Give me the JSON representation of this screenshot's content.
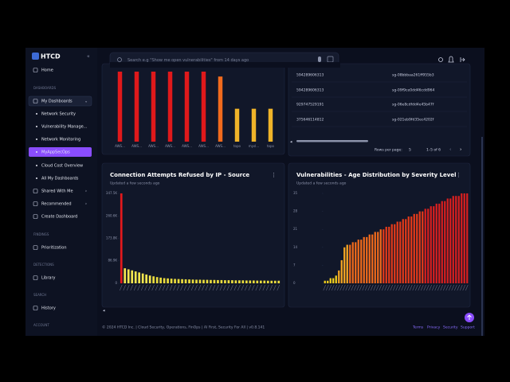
{
  "logo": "HTCD",
  "nav": [
    "Home",
    "DASHBOARDS",
    "My Dashboards",
    "Network Security",
    "Vulnerability Manage...",
    "Network Monitoring",
    "MyAppSecOps",
    "Cloud Cost Overview",
    "All My Dashboards",
    "Shared With Me",
    "Recommended",
    "Create Dashboard",
    "FINDINGS",
    "Prioritization",
    "DETECTIONS",
    "Library",
    "SEARCH",
    "History",
    "ACCOUNT"
  ],
  "search_placeholder": "Search e.g \"Show me open vulnerabilities\" from 14 days ago",
  "table": {
    "rows": [
      [
        "594289606313",
        "sg-08bbbaa261ff955b3"
      ],
      [
        "594289606313",
        "sg-09f9ce0dd46cdd964"
      ],
      [
        "929747529191",
        "sg-06e8cdfdd4e45b47f"
      ],
      [
        "375646114812",
        "sg-021eb9fd35ec4202f"
      ]
    ],
    "rows_per_page_label": "Rows per page:",
    "rows_per_page": 5,
    "range": "1–5 of 6"
  },
  "footer": {
    "copyright": "© 2024 HTCD Inc. | Cloud Security, Operations, FinOps | AI First, Security For All | v0.8.141",
    "links": [
      "Terms",
      "Privacy",
      "Security",
      "Support"
    ]
  },
  "chart_data": [
    {
      "type": "bar",
      "categories": [
        "AWS...",
        "AWS...",
        "AWS...",
        "AWS...",
        "AWS...",
        "AWS...",
        "AWS...",
        "topo",
        "mysl...",
        "topo"
      ],
      "values": [
        100,
        100,
        100,
        100,
        100,
        100,
        93,
        47,
        47,
        47
      ],
      "colors": [
        "#e0191b",
        "#e0191b",
        "#e0191b",
        "#e0191b",
        "#e0191b",
        "#e0191b",
        "#f26b1d",
        "#f0b429",
        "#f0b429",
        "#f0b429"
      ]
    },
    {
      "type": "bar",
      "title": "Connection Attempts Refused by IP - Source",
      "subtitle": "Updated a few seconds ago",
      "values": [
        347500,
        58000,
        54000,
        50000,
        46000,
        42000,
        38000,
        34000,
        30000,
        27000,
        24000,
        22000,
        20000,
        19000,
        18000,
        17000,
        16500,
        16000,
        15500,
        15000,
        14500,
        14000,
        14000,
        13500,
        13500,
        13000,
        13000,
        12500,
        12500,
        12000,
        12000,
        12000,
        11500,
        11500,
        11500,
        11000,
        11000,
        11000,
        10500,
        10500,
        10500,
        10000,
        10000,
        10000,
        10000
      ],
      "colors": [
        "#e3191c",
        "#f3e64f",
        "#f3e64f",
        "#f3e64f",
        "#f3e64f",
        "#f3e64f",
        "#f3e64f",
        "#f3e64f",
        "#f3e64f",
        "#eadc3e",
        "#eadc3e",
        "#eadc3e",
        "#eadc3e",
        "#eadc3e",
        "#eadc3e",
        "#eadc3e",
        "#eadc3e",
        "#eadc3e",
        "#eadc3e",
        "#eadc3e",
        "#eadc3e",
        "#eadc3e",
        "#eadc3e",
        "#eadc3e",
        "#eadc3e",
        "#eadc3e",
        "#eadc3e",
        "#eadc3e",
        "#eadc3e",
        "#eadc3e",
        "#eadc3e",
        "#eadc3e",
        "#eadc3e",
        "#eadc3e",
        "#eadc3e",
        "#eadc3e",
        "#eadc3e",
        "#eadc3e",
        "#eadc3e",
        "#eadc3e",
        "#eadc3e",
        "#eadc3e",
        "#eadc3e",
        "#eadc3e",
        "#eadc3e"
      ],
      "ylim": [
        0,
        347500
      ],
      "yticks": [
        0,
        {
          "value": 86900,
          "label": "86.9K"
        },
        {
          "value": 173800,
          "label": "173.8K"
        },
        {
          "value": 260600,
          "label": "260.6K"
        },
        {
          "value": 347500,
          "label": "347.5K"
        }
      ]
    },
    {
      "type": "bar",
      "title": "Vulnerabilities - Age Distribution by Severity Level",
      "subtitle": "Updated a few seconds ago",
      "values": [
        1,
        1,
        2,
        2,
        3,
        5,
        9,
        14,
        15,
        15,
        16,
        16,
        17,
        17,
        18,
        18,
        19,
        19,
        20,
        20,
        21,
        21,
        22,
        22,
        23,
        23,
        24,
        24,
        25,
        25,
        26,
        26,
        27,
        27,
        28,
        28,
        29,
        29,
        30,
        30,
        31,
        31,
        32,
        32,
        33,
        33,
        34,
        34,
        34,
        35,
        35,
        35
      ],
      "colors": [
        "#f2d01e",
        "#f2d01e",
        "#f2d01e",
        "#f2d01e",
        "#f2d01e",
        "#f5a623",
        "#f5a623",
        "#f5a623",
        "#f5a623",
        "#f06a1c",
        "#f06a1c",
        "#f06a1c",
        "#f06a1c",
        "#f06a1c",
        "#f06a1c",
        "#f06a1c",
        "#f06a1c",
        "#f06a1c",
        "#f06a1c",
        "#f06a1c",
        "#f06a1c",
        "#e23a1a",
        "#e23a1a",
        "#e23a1a",
        "#e23a1a",
        "#e23a1a",
        "#e23a1a",
        "#e23a1a",
        "#e23a1a",
        "#e23a1a",
        "#e23a1a",
        "#e23a1a",
        "#e23a1a",
        "#e23a1a",
        "#e23a1a",
        "#e23a1a",
        "#d61f1f",
        "#d61f1f",
        "#d61f1f",
        "#d61f1f",
        "#d61f1f",
        "#d61f1f",
        "#d61f1f",
        "#d61f1f",
        "#d61f1f",
        "#d61f1f",
        "#d61f1f",
        "#d61f1f",
        "#d61f1f",
        "#d61f1f",
        "#d61f1f",
        "#d61f1f"
      ],
      "ylim": [
        0,
        35
      ],
      "yticks": [
        0,
        7,
        14,
        21,
        28,
        35
      ]
    }
  ]
}
